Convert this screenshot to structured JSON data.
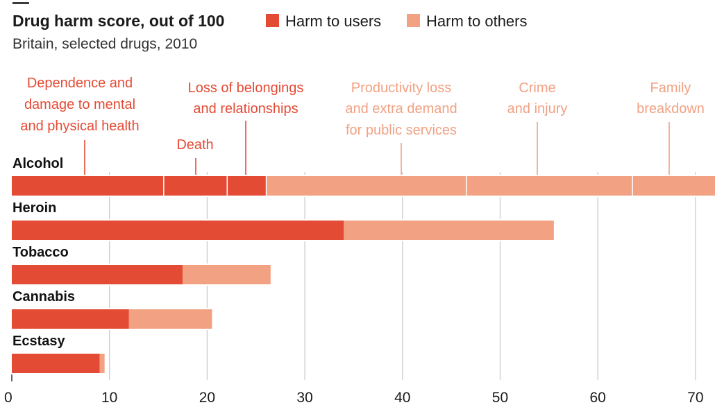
{
  "chart_data": {
    "type": "bar",
    "orientation": "horizontal",
    "stacked": true,
    "title": "Drug harm score, out of 100",
    "subtitle": "Britain, selected drugs, 2010",
    "xlim": [
      0,
      72
    ],
    "x_ticks": [
      "0",
      "10",
      "20",
      "30",
      "40",
      "50",
      "60",
      "70"
    ],
    "grid": true,
    "legend_position": "top",
    "legend": [
      {
        "label": "Harm to users",
        "color": "#e44b35"
      },
      {
        "label": "Harm to others",
        "color": "#f2a183"
      }
    ],
    "categories": [
      "Alcohol",
      "Heroin",
      "Tobacco",
      "Cannabis",
      "Ecstasy"
    ],
    "series": [
      {
        "name": "Harm to users",
        "values": [
          26,
          34,
          17.5,
          12,
          9
        ]
      },
      {
        "name": "Harm to others",
        "values": [
          46,
          21.5,
          9,
          8.5,
          0.5
        ]
      }
    ],
    "alcohol_breakdown": [
      {
        "label": "Dependence and damage to mental and physical health",
        "value": 15.5,
        "group": "Harm to users"
      },
      {
        "label": "Death",
        "value": 6.5,
        "group": "Harm to users"
      },
      {
        "label": "Loss of belongings and relationships",
        "value": 4,
        "group": "Harm to users"
      },
      {
        "label": "Productivity loss and extra demand for public services",
        "value": 20.5,
        "group": "Harm to others"
      },
      {
        "label": "Crime and injury",
        "value": 17,
        "group": "Harm to others"
      },
      {
        "label": "Family breakdown",
        "value": 8.5,
        "group": "Harm to others"
      }
    ]
  }
}
